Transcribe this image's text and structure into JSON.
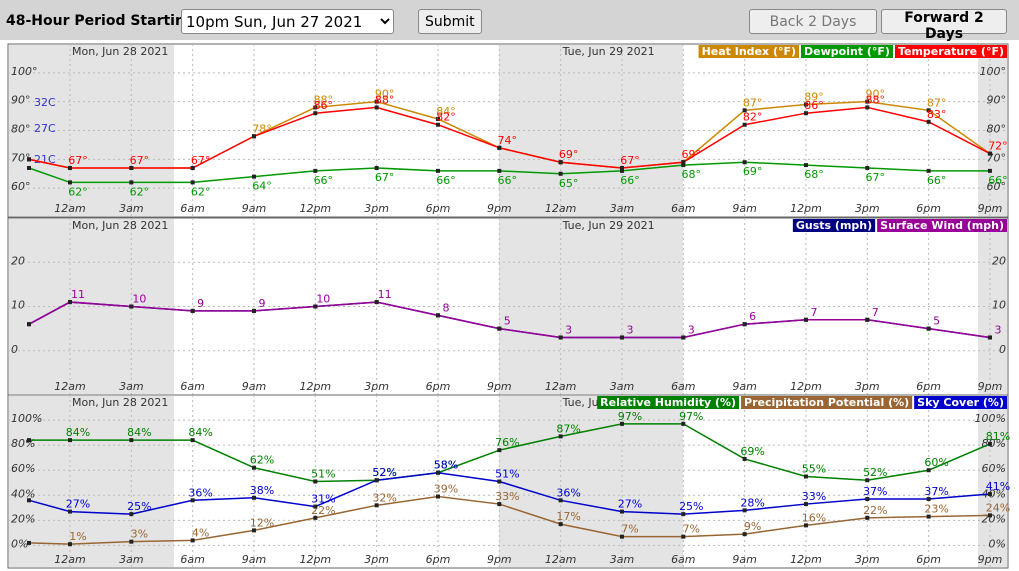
{
  "toolbar": {
    "label": "48-Hour Period Starting:",
    "period": "10pm Sun, Jun 27 2021",
    "submit": "Submit",
    "back": "Back 2 Days",
    "forward": "Forward 2 Days"
  },
  "chart_data": [
    {
      "type": "line",
      "day_labels": [
        "Mon, Jun 28 2021",
        "Tue, Jun 29 2021"
      ],
      "categories": [
        null,
        "12am",
        "3am",
        "6am",
        "9am",
        "12pm",
        "3pm",
        "6pm",
        "9pm",
        "12am",
        "3am",
        "6am",
        "9am",
        "12pm",
        "3pm",
        "6pm",
        "9pm"
      ],
      "ylim": [
        50,
        110
      ],
      "yticks": [
        {
          "value": 60,
          "label": "60°"
        },
        {
          "value": 70,
          "label": "70°"
        },
        {
          "value": 80,
          "label": "80°"
        },
        {
          "value": 90,
          "label": "90°"
        },
        {
          "value": 100,
          "label": "100°"
        }
      ],
      "annotations": [
        {
          "value": 89.6,
          "label": "32C"
        },
        {
          "value": 80.6,
          "label": "27C"
        },
        {
          "value": 69.8,
          "label": "21C"
        }
      ],
      "grid": true,
      "series": [
        {
          "name": "Heat Index (°F)",
          "color": "#cc8800",
          "values": [
            70,
            67,
            67,
            67,
            78,
            88,
            90,
            84,
            74,
            69,
            67,
            69,
            87,
            89,
            90,
            87,
            72
          ],
          "value_labels": [
            null,
            null,
            null,
            null,
            "78°",
            "88°",
            "90°",
            "84°",
            null,
            null,
            null,
            null,
            "87°",
            "89°",
            "90°",
            "87°",
            null
          ]
        },
        {
          "name": "Dewpoint (°F)",
          "color": "#009900",
          "values": [
            67,
            62,
            62,
            62,
            64,
            66,
            67,
            66,
            66,
            65,
            66,
            68,
            69,
            68,
            67,
            66,
            66
          ],
          "value_labels": [
            null,
            "62°",
            "62°",
            "62°",
            "64°",
            "66°",
            "67°",
            "66°",
            "66°",
            "65°",
            "66°",
            "68°",
            "69°",
            "68°",
            "67°",
            "66°",
            "66°"
          ]
        },
        {
          "name": "Temperature (°F)",
          "color": "#ff0000",
          "values": [
            70,
            67,
            67,
            67,
            78,
            86,
            88,
            82,
            74,
            69,
            67,
            69,
            82,
            86,
            88,
            83,
            72
          ],
          "value_labels": [
            null,
            "67°",
            "67°",
            "67°",
            null,
            "86°",
            "88°",
            "82°",
            "74°",
            "69°",
            "67°",
            "69°",
            "82°",
            "86°",
            "88°",
            "83°",
            "72°"
          ]
        }
      ]
    },
    {
      "type": "line",
      "day_labels": [
        "Mon, Jun 28 2021",
        "Tue, Jun 29 2021"
      ],
      "categories": [
        null,
        "12am",
        "3am",
        "6am",
        "9am",
        "12pm",
        "3pm",
        "6pm",
        "9pm",
        "12am",
        "3am",
        "6am",
        "9am",
        "12pm",
        "3pm",
        "6pm",
        "9pm"
      ],
      "ylim": [
        -10,
        30
      ],
      "yticks": [
        0,
        10,
        20
      ],
      "grid": true,
      "series": [
        {
          "name": "Gusts (mph)",
          "color": "#000080",
          "values": [
            6,
            11,
            10,
            9,
            9,
            10,
            11,
            8,
            5,
            3,
            3,
            3,
            6,
            7,
            7,
            5,
            3
          ]
        },
        {
          "name": "Surface Wind (mph)",
          "color": "#990099",
          "values": [
            6,
            11,
            10,
            9,
            9,
            10,
            11,
            8,
            5,
            3,
            3,
            3,
            6,
            7,
            7,
            5,
            3
          ],
          "show_labels": true
        }
      ]
    },
    {
      "type": "line",
      "day_labels": [
        "Mon, Jun 28 2021",
        "Tue, Jun 29 2021"
      ],
      "categories": [
        null,
        "12am",
        "3am",
        "6am",
        "9am",
        "12pm",
        "3pm",
        "6pm",
        "9pm",
        "12am",
        "3am",
        "6am",
        "9am",
        "12pm",
        "3pm",
        "6pm",
        "9pm"
      ],
      "ylim": [
        -18,
        120
      ],
      "yticks": [
        {
          "value": 0,
          "label": "0%"
        },
        {
          "value": 20,
          "label": "20%"
        },
        {
          "value": 40,
          "label": "40%"
        },
        {
          "value": 60,
          "label": "60%"
        },
        {
          "value": 80,
          "label": "80%"
        },
        {
          "value": 100,
          "label": "100%"
        }
      ],
      "grid": true,
      "series": [
        {
          "name": "Relative Humidity (%)",
          "color": "#008000",
          "values": [
            84,
            84,
            84,
            84,
            62,
            51,
            52,
            58,
            76,
            87,
            97,
            97,
            69,
            55,
            52,
            60,
            81
          ],
          "value_labels": [
            null,
            "84%",
            "84%",
            "84%",
            "62%",
            "51%",
            "52%",
            "58%",
            "76%",
            "87%",
            "97%",
            "97%",
            "69%",
            "55%",
            "52%",
            "60%",
            "81%"
          ]
        },
        {
          "name": "Precipitation Potential (%)",
          "color": "#996633",
          "values": [
            2,
            1,
            3,
            4,
            12,
            22,
            32,
            39,
            33,
            17,
            7,
            7,
            9,
            16,
            22,
            23,
            24
          ],
          "value_labels": [
            null,
            "1%",
            "3%",
            "4%",
            "12%",
            "22%",
            "32%",
            "39%",
            "33%",
            "17%",
            "7%",
            "7%",
            "9%",
            "16%",
            "22%",
            "23%",
            "24%"
          ]
        },
        {
          "name": "Sky Cover (%)",
          "color": "#0000cc",
          "values": [
            36,
            27,
            25,
            36,
            38,
            31,
            52,
            58,
            51,
            36,
            27,
            25,
            28,
            33,
            37,
            37,
            41
          ],
          "value_labels": [
            null,
            "27%",
            "25%",
            "36%",
            "38%",
            "31%",
            "52%",
            "58%",
            "51%",
            "36%",
            "27%",
            "25%",
            "28%",
            "33%",
            "37%",
            "37%",
            "41%"
          ]
        }
      ]
    }
  ]
}
